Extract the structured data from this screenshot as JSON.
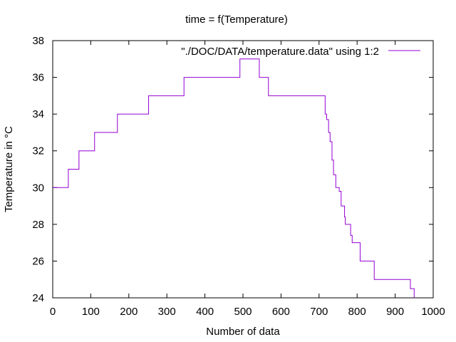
{
  "chart_data": {
    "type": "line",
    "title": "time = f(Temperature)",
    "xlabel": "Number of data",
    "ylabel": "Temperature in °C",
    "xlim": [
      0,
      1000
    ],
    "ylim": [
      24,
      38
    ],
    "xticks": [
      0,
      100,
      200,
      300,
      400,
      500,
      600,
      700,
      800,
      900,
      1000
    ],
    "yticks": [
      24,
      26,
      28,
      30,
      32,
      34,
      36,
      38
    ],
    "grid": false,
    "legend_position": "top-right",
    "series": [
      {
        "name": "\"./DOC/DATA/temperature.data\" using 1:2",
        "color": "#9400d3",
        "step": "post",
        "points": [
          [
            0,
            30
          ],
          [
            41,
            31
          ],
          [
            69,
            32
          ],
          [
            110,
            33
          ],
          [
            170,
            34
          ],
          [
            252,
            35
          ],
          [
            345,
            36
          ],
          [
            492,
            37
          ],
          [
            543,
            36
          ],
          [
            567,
            35
          ],
          [
            716,
            34
          ],
          [
            720,
            33.7
          ],
          [
            725,
            33
          ],
          [
            729,
            32.5
          ],
          [
            734,
            31.5
          ],
          [
            738,
            30.7
          ],
          [
            744,
            30
          ],
          [
            753,
            29.8
          ],
          [
            758,
            29
          ],
          [
            767,
            28.4
          ],
          [
            769,
            28
          ],
          [
            783,
            27.4
          ],
          [
            787,
            27
          ],
          [
            808,
            26
          ],
          [
            845,
            25
          ],
          [
            940,
            24.5
          ],
          [
            950,
            24
          ]
        ]
      }
    ]
  }
}
